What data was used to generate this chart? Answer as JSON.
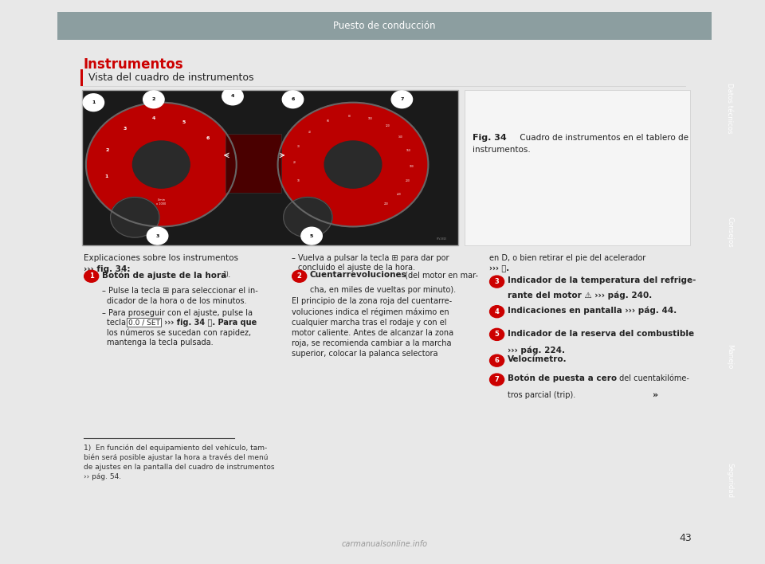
{
  "page_bg": "#e8e8e8",
  "content_bg": "#ffffff",
  "header_bg": "#8c9ea0",
  "header_text": "Puesto de conducción",
  "header_text_color": "#ffffff",
  "right_tab_labels": [
    "Datos técnicos",
    "Consejos",
    "Manejo",
    "Seguridad"
  ],
  "right_tab_active": "Manejo",
  "right_tab_active_color": "#cc0000",
  "right_tab_inactive_color": "#8c9ea0",
  "right_tab_text_color": "#ffffff",
  "section_title": "Instrumentos",
  "section_title_color": "#cc0000",
  "subsection_title": "Vista del cuadro de instrumentos",
  "subsection_bar_color": "#cc0000",
  "fig_caption_bold": "Fig. 34",
  "fig_caption_text": " Cuadro de instrumentos en el tablero de\ninstrumentos.",
  "page_number": "43",
  "image_placeholder_color": "#1a1a1a",
  "image_border_color": "#aaaaaa"
}
